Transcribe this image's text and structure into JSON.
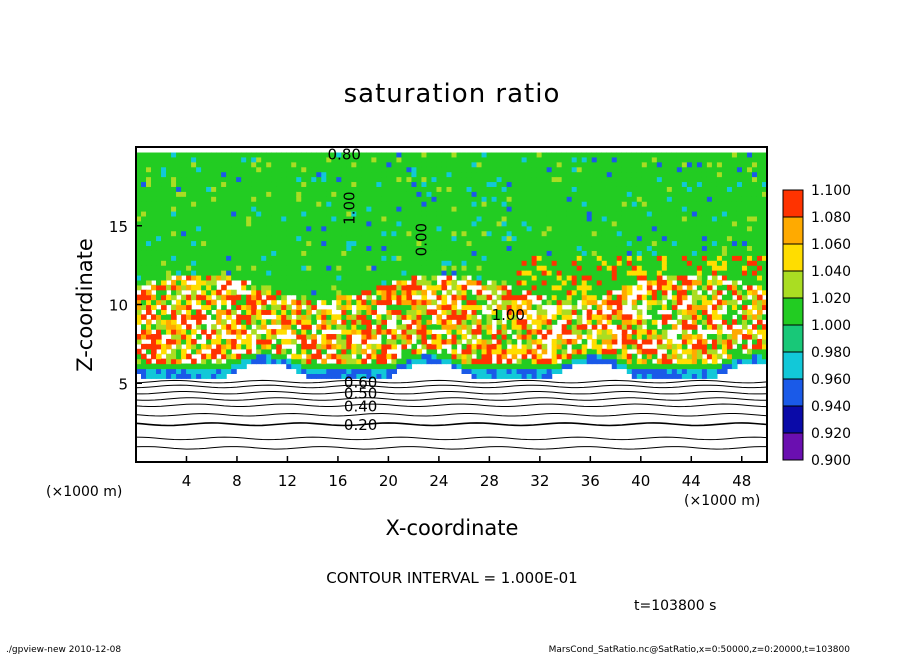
{
  "chart_data": {
    "type": "heatmap",
    "title": "saturation ratio",
    "xlabel": "X-coordinate",
    "ylabel": "Z-coordinate",
    "x_unit_note": "(×1000 m)",
    "y_unit_note": "(×1000 m)",
    "xlim": [
      0,
      50
    ],
    "ylim": [
      0,
      20
    ],
    "x_ticks": [
      4,
      8,
      12,
      16,
      20,
      24,
      28,
      32,
      36,
      40,
      44,
      48
    ],
    "y_ticks": [
      5,
      10,
      15
    ],
    "color_scale": {
      "levels": [
        0.9,
        0.92,
        0.94,
        0.96,
        0.98,
        1.0,
        1.02,
        1.04,
        1.06,
        1.08,
        1.1
      ],
      "labels": [
        "0.900",
        "0.920",
        "0.940",
        "0.960",
        "0.980",
        "1.000",
        "1.020",
        "1.040",
        "1.060",
        "1.080",
        "1.100"
      ],
      "colors": [
        "#6a0fb0",
        "#0a0aa8",
        "#1a5ae8",
        "#12c8d8",
        "#18c878",
        "#22cc22",
        "#aadd22",
        "#ffdd00",
        "#ffaa00",
        "#ff3300",
        "#ff8899"
      ]
    },
    "contour_labels": [
      {
        "text": "0.80",
        "x": 16.5,
        "z": 19.6
      },
      {
        "text": "1.00",
        "x": 17.3,
        "z": 16.5
      },
      {
        "text": "0.00",
        "x": 23.0,
        "z": 14.5
      },
      {
        "text": "1.00",
        "x": 29.5,
        "z": 9.4
      },
      {
        "text": "0.60",
        "x": 17.8,
        "z": 5.1
      },
      {
        "text": "0.50",
        "x": 17.8,
        "z": 4.4
      },
      {
        "text": "0.40",
        "x": 17.8,
        "z": 3.6
      },
      {
        "text": "0.20",
        "x": 17.8,
        "z": 2.4
      }
    ],
    "contour_interval": "CONTOUR INTERVAL = 1.000E-01",
    "time_label": "t=103800 s"
  },
  "footer": {
    "program": "./gpview-new  2010-12-08",
    "source": "MarsCond_SatRatio.nc@SatRatio,x=0:50000,z=0:20000,t=103800"
  }
}
